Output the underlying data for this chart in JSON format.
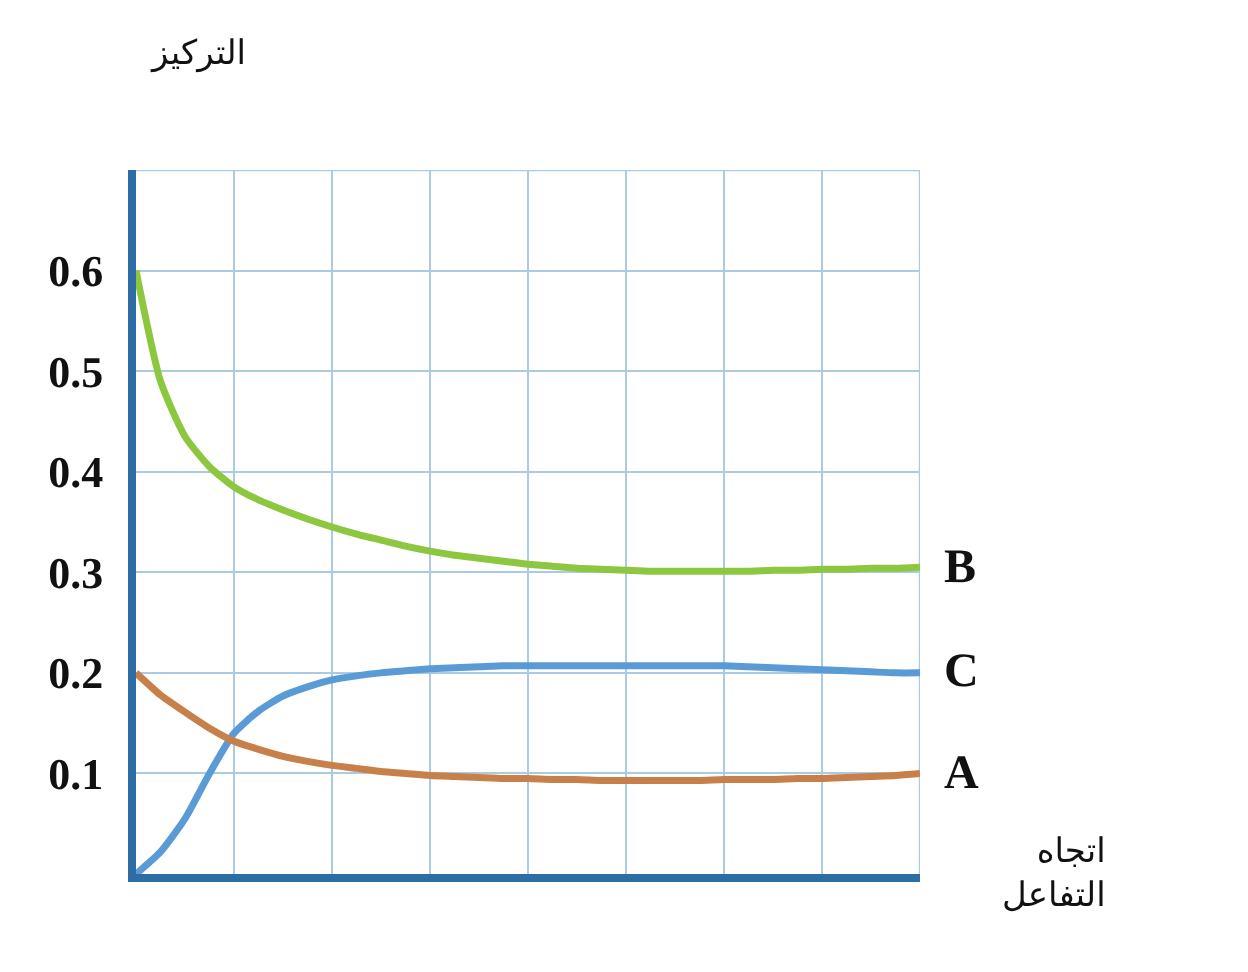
{
  "chart_data": {
    "type": "line",
    "ylabel": "التركيز",
    "xlabel": "اتجاه\nالتفاعل",
    "categories": [
      null,
      null,
      null,
      null,
      null,
      null,
      null,
      null,
      null,
      null,
      null,
      null,
      null,
      null,
      null,
      null,
      null,
      null,
      null,
      null,
      null,
      null,
      null,
      null,
      null,
      null,
      null,
      null,
      null,
      null,
      null,
      null,
      null
    ],
    "series": [
      {
        "name": "B",
        "color": "#8dc63f",
        "values": [
          0.6,
          0.49,
          0.435,
          0.405,
          0.385,
          0.372,
          0.362,
          0.353,
          0.345,
          0.338,
          0.332,
          0.326,
          0.321,
          0.317,
          0.314,
          0.311,
          0.308,
          0.306,
          0.304,
          0.303,
          0.302,
          0.301,
          0.301,
          0.301,
          0.301,
          0.301,
          0.302,
          0.302,
          0.303,
          0.303,
          0.304,
          0.304,
          0.305
        ]
      },
      {
        "name": "C",
        "color": "#5b9bd5",
        "values": [
          0,
          0.022,
          0.055,
          0.1,
          0.14,
          0.162,
          0.177,
          0.186,
          0.193,
          0.197,
          0.2,
          0.202,
          0.204,
          0.205,
          0.206,
          0.207,
          0.207,
          0.207,
          0.207,
          0.207,
          0.207,
          0.207,
          0.207,
          0.207,
          0.207,
          0.206,
          0.205,
          0.204,
          0.203,
          0.202,
          0.201,
          0.2,
          0.2
        ]
      },
      {
        "name": "A",
        "color": "#c8804a",
        "values": [
          0.2,
          0.178,
          0.161,
          0.145,
          0.132,
          0.124,
          0.117,
          0.112,
          0.108,
          0.105,
          0.102,
          0.1,
          0.098,
          0.097,
          0.096,
          0.095,
          0.095,
          0.094,
          0.094,
          0.093,
          0.093,
          0.093,
          0.093,
          0.093,
          0.094,
          0.094,
          0.094,
          0.095,
          0.095,
          0.096,
          0.097,
          0.098,
          0.1
        ]
      }
    ],
    "ylim": [
      0,
      0.7
    ],
    "yticks": [
      0.1,
      0.2,
      0.3,
      0.4,
      0.5,
      0.6,
      {
        "value": 0.7,
        "label": null
      }
    ],
    "grid": true,
    "legend": false,
    "marker": "none",
    "line_style": "solid",
    "tick_labels": "y"
  }
}
